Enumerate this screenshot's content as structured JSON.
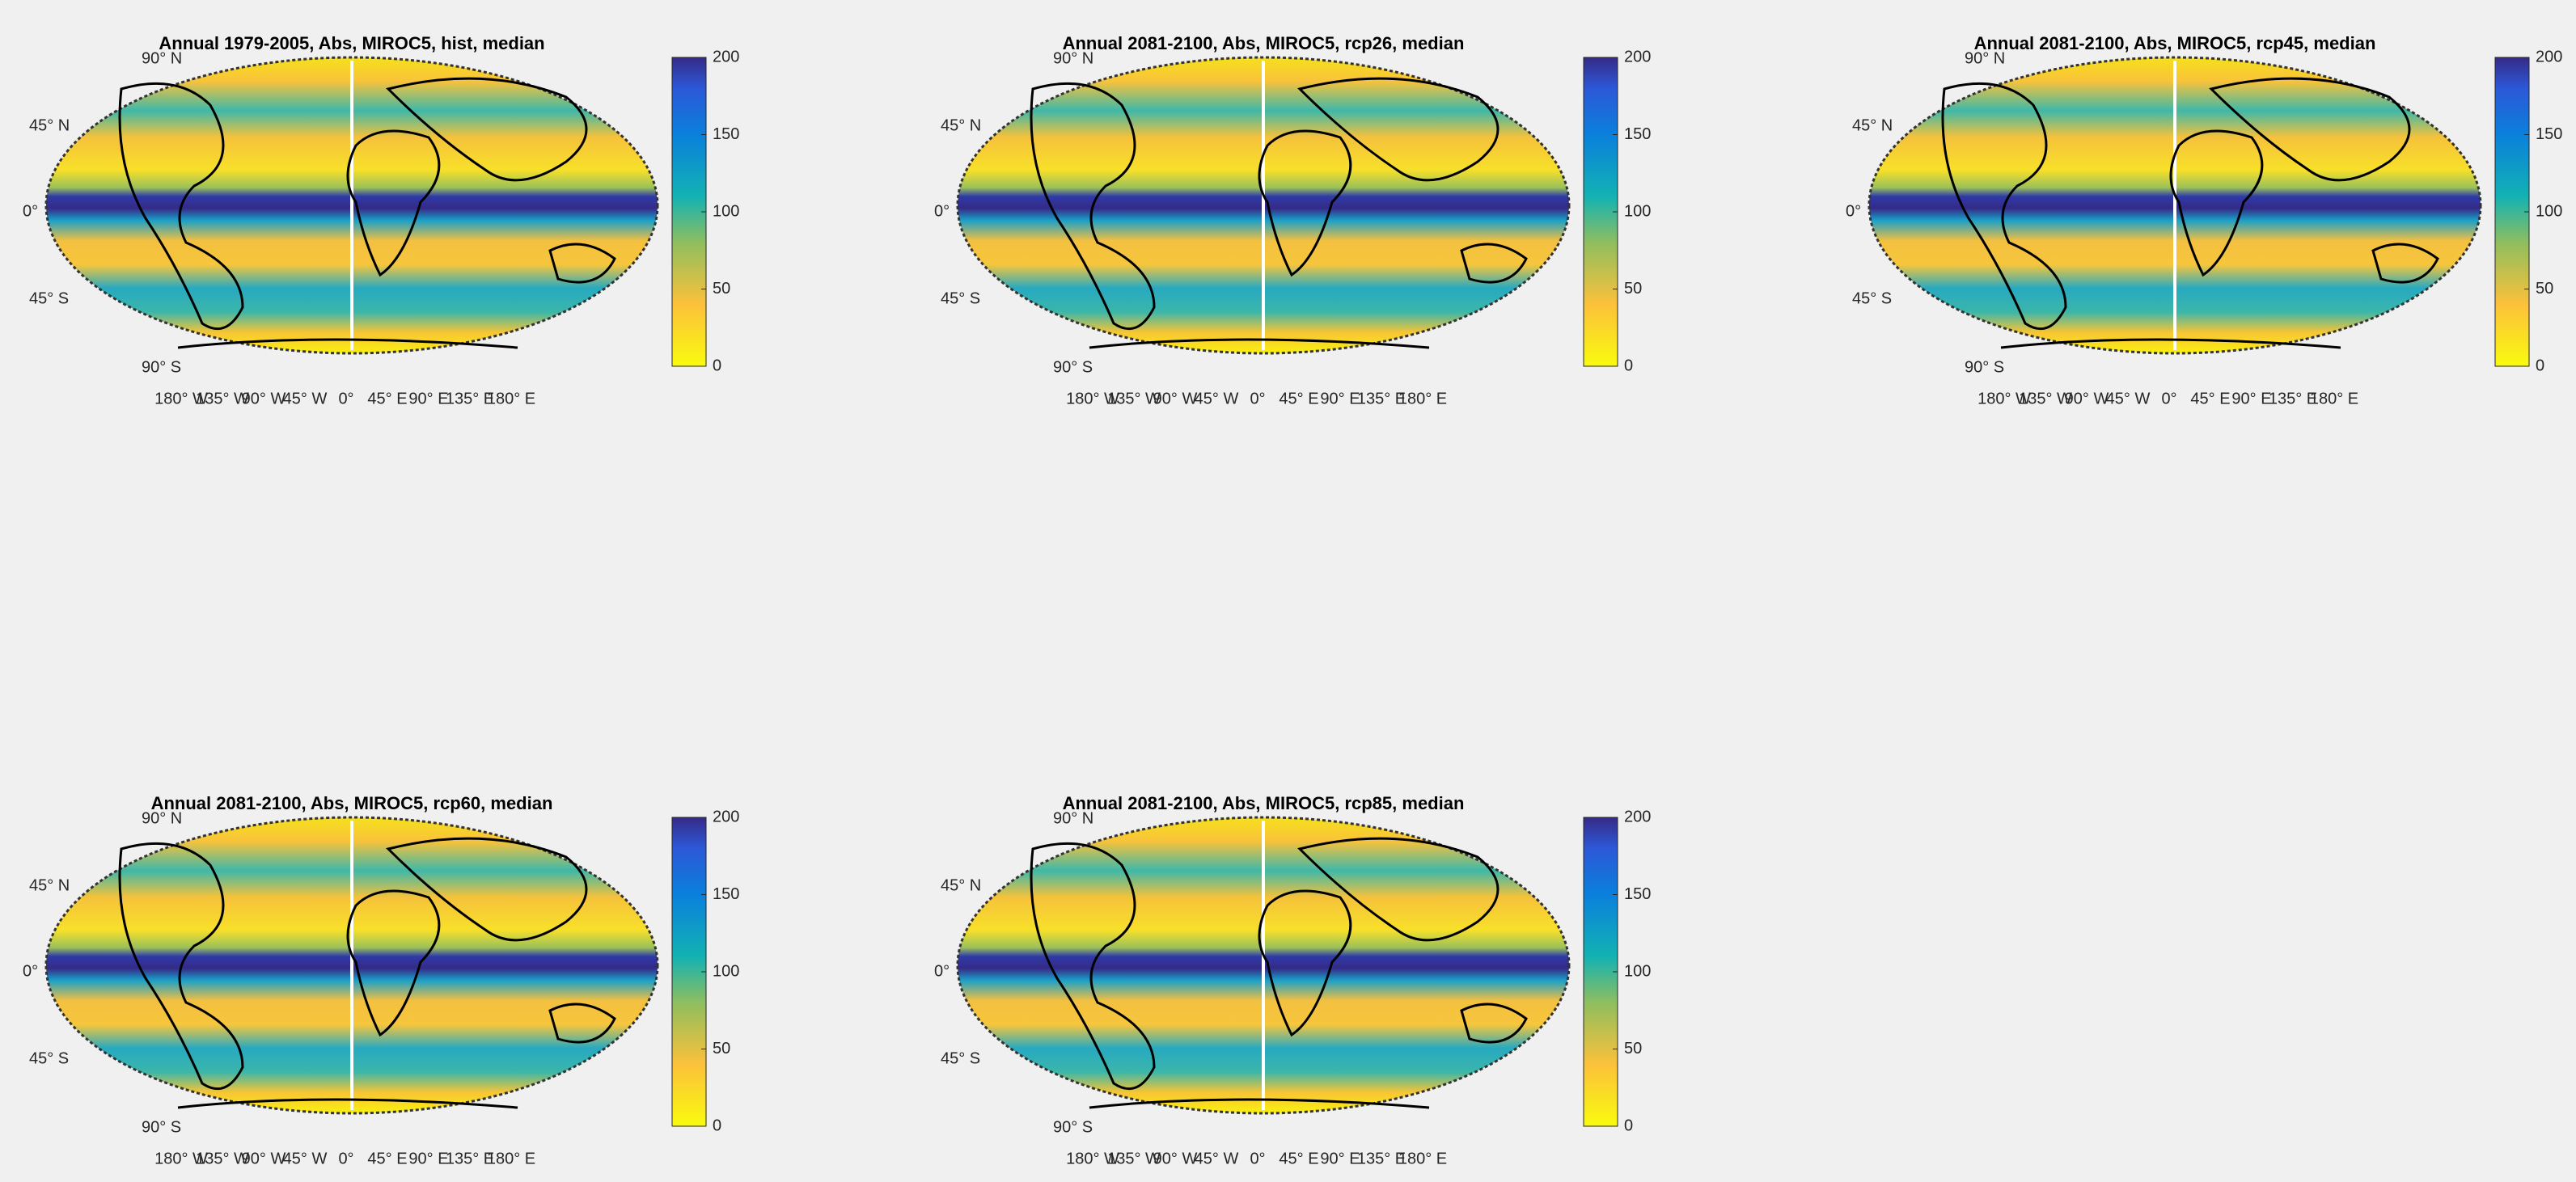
{
  "panels": [
    {
      "title": "Annual 1979-2005, Abs, MIROC5, hist, median"
    },
    {
      "title": "Annual 2081-2100, Abs, MIROC5, rcp26, median"
    },
    {
      "title": "Annual 2081-2100, Abs, MIROC5, rcp45, median"
    },
    {
      "title": "Annual 2081-2100, Abs, MIROC5, rcp60, median"
    },
    {
      "title": "Annual 2081-2100, Abs, MIROC5, rcp85, median"
    }
  ],
  "lat_labels": [
    "90° N",
    "45° N",
    "0°",
    "45° S",
    "90° S"
  ],
  "lon_labels": [
    "180° W",
    "135° W",
    "90° W",
    "45° W",
    "0°",
    "45° E",
    "90° E",
    "135° E",
    "180° E"
  ],
  "colorbar": {
    "ylim": [
      0,
      200
    ],
    "yticks": [
      0,
      50,
      100,
      150,
      200
    ]
  }
}
